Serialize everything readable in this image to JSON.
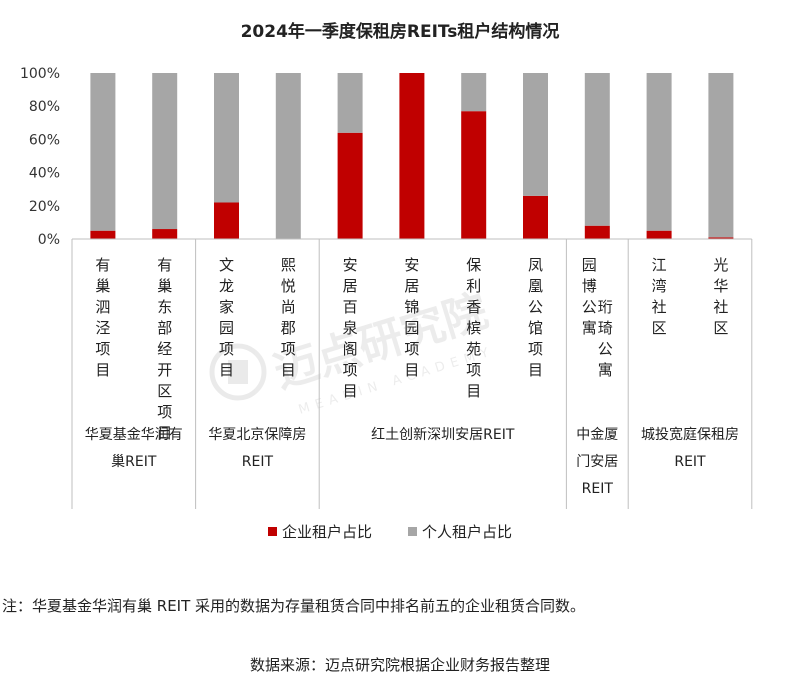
{
  "chart_data": {
    "type": "bar",
    "stacked": true,
    "title": "2024年一季度保租房REITs租户结构情况",
    "y_ticks": [
      "100%",
      "80%",
      "60%",
      "40%",
      "20%",
      "0%"
    ],
    "ylim": [
      0,
      100
    ],
    "categories": [
      "有巢泗泾项目",
      "有巢东部经开区项目",
      "文龙家园项目",
      "熙悦尚郡项目",
      "安居百泉阁项目",
      "安居锦园项目",
      "保利香槟苑项目",
      "凤凰公馆项目",
      "园博公寓 珩琦公寓",
      "江湾社区",
      "光华社区"
    ],
    "category_lines": [
      [
        "有巢泗泾项目"
      ],
      [
        "有巢东部经开区项目"
      ],
      [
        "文龙家园项目"
      ],
      [
        "熙悦尚郡项目"
      ],
      [
        "安居百泉阁项目"
      ],
      [
        "安居锦园项目"
      ],
      [
        "保利香槟苑项目"
      ],
      [
        "凤凰公馆项目"
      ],
      [
        "园博公寓",
        "珩琦公寓"
      ],
      [
        "江湾社区"
      ],
      [
        "光华社区"
      ]
    ],
    "series": [
      {
        "name": "企业租户占比",
        "color": "#c00000",
        "values": [
          5,
          6,
          22,
          0,
          64,
          100,
          77,
          26,
          8,
          5,
          1
        ]
      },
      {
        "name": "个人租户占比",
        "color": "#a6a6a6",
        "values": [
          95,
          94,
          78,
          100,
          36,
          0,
          23,
          74,
          92,
          95,
          99
        ]
      }
    ],
    "groups": [
      {
        "lines": [
          "华夏基金华润有",
          "巢REIT"
        ],
        "start": 0,
        "end": 1
      },
      {
        "lines": [
          "华夏北京保障房",
          "REIT"
        ],
        "start": 2,
        "end": 3
      },
      {
        "lines": [
          "红土创新深圳安居REIT"
        ],
        "start": 4,
        "end": 7
      },
      {
        "lines": [
          "中金厦",
          "门安居",
          "REIT"
        ],
        "start": 8,
        "end": 8
      },
      {
        "lines": [
          "城投宽庭保租房",
          "REIT"
        ],
        "start": 9,
        "end": 10
      }
    ],
    "legend_position": "bottom"
  },
  "watermark": {
    "text": "迈点研究院",
    "subtext": "MEADIN ACADEMY"
  },
  "note": "注：华夏基金华润有巢 REIT 采用的数据为存量租赁合同中排名前五的企业租赁合同数。",
  "source": "数据来源：迈点研究院根据企业财务报告整理"
}
